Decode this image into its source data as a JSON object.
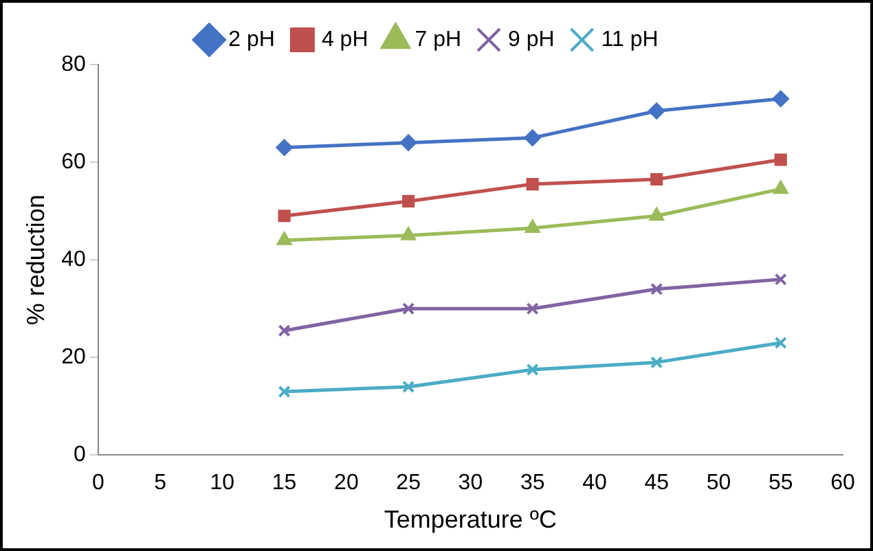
{
  "chart_data": {
    "type": "line",
    "xlabel": "Temperature ºC",
    "ylabel": "% reduction",
    "x": [
      15,
      25,
      35,
      45,
      55
    ],
    "series": [
      {
        "name": "2 pH",
        "color": "#4472c4",
        "marker": "diamond",
        "values": [
          63,
          64,
          65,
          70.5,
          73
        ]
      },
      {
        "name": "4 pH",
        "color": "#c0504d",
        "marker": "square",
        "values": [
          49,
          52,
          55.5,
          56.5,
          60.5
        ]
      },
      {
        "name": "7 pH",
        "color": "#9bbb59",
        "marker": "triangle",
        "values": [
          44,
          45,
          46.5,
          49,
          54.5
        ]
      },
      {
        "name": "9 pH",
        "color": "#8064a2",
        "marker": "cross",
        "values": [
          25.5,
          30,
          30,
          34,
          36
        ]
      },
      {
        "name": "11 pH",
        "color": "#4bacc6",
        "marker": "cross",
        "values": [
          13,
          14,
          17.5,
          19,
          23
        ]
      }
    ],
    "xlim": [
      0,
      60
    ],
    "xticks": [
      0,
      5,
      10,
      15,
      20,
      25,
      30,
      35,
      40,
      45,
      50,
      55,
      60
    ],
    "ylim": [
      0,
      80
    ],
    "yticks": [
      0,
      20,
      40,
      60,
      80
    ],
    "grid": false,
    "legend": "top",
    "line_style": "solid"
  }
}
